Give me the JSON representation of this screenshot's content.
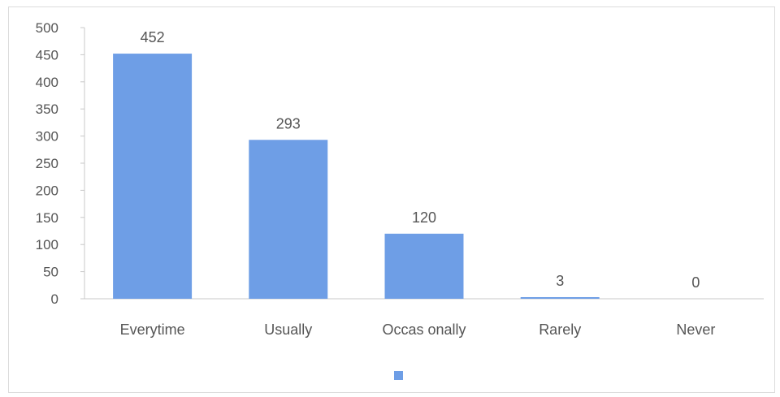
{
  "chart_data": {
    "type": "bar",
    "categories": [
      "Everytime",
      "Usually",
      "Occas onally",
      "Rarely",
      "Never"
    ],
    "series": [
      {
        "values": [
          452,
          293,
          120,
          3,
          0
        ]
      }
    ],
    "data_labels": [
      "452",
      "293",
      "120",
      "3",
      "0"
    ],
    "yticks": [
      "0",
      "50",
      "100",
      "150",
      "200",
      "250",
      "300",
      "350",
      "400",
      "450",
      "500"
    ],
    "ylim": [
      0,
      500
    ],
    "grid": false,
    "legend": "bottom",
    "bar_color": "#6e9ee6",
    "axis_color": "#c8c8c8"
  }
}
